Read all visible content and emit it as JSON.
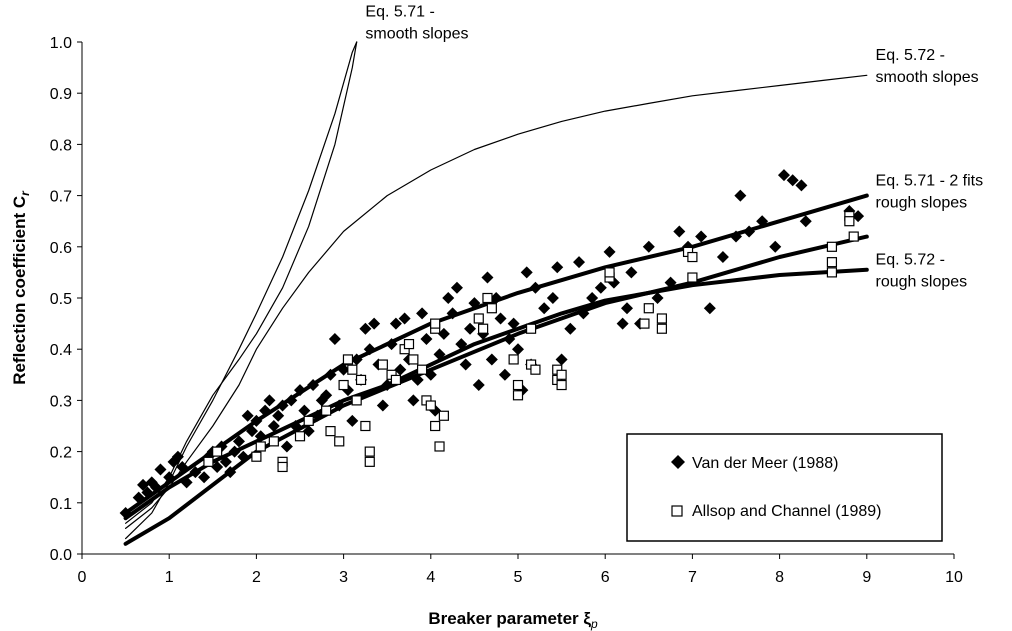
{
  "chart_data": {
    "type": "scatter",
    "xlabel": "Breaker parameter ξ",
    "xlabel_sub": "p",
    "ylabel": "Reflection coefficient C",
    "ylabel_sub": "r",
    "xlim": [
      0,
      10
    ],
    "ylim": [
      0,
      1
    ],
    "xticks": [
      "0",
      "1",
      "2",
      "3",
      "4",
      "5",
      "6",
      "7",
      "8",
      "9",
      "10"
    ],
    "yticks": [
      "0.0",
      "0.1",
      "0.2",
      "0.3",
      "0.4",
      "0.5",
      "0.6",
      "0.7",
      "0.8",
      "0.9",
      "1.0"
    ],
    "grid": false,
    "legend_position": "bottom-right",
    "legend": [
      {
        "label": "Van der Meer (1988)",
        "marker": "filled-diamond"
      },
      {
        "label": "Allsop and Channel (1989)",
        "marker": "open-square"
      }
    ],
    "annotations": [
      {
        "line1": "Eq. 5.71 -",
        "line2": "smooth slopes",
        "x": 3.25,
        "y": 1.05
      },
      {
        "line1": "Eq. 5.72 -",
        "line2": "smooth slopes",
        "x": 9.1,
        "y": 0.965
      },
      {
        "line1": "Eq. 5.71 - 2 fits",
        "line2": "rough slopes",
        "x": 9.1,
        "y": 0.72
      },
      {
        "line1": "Eq. 5.72 -",
        "line2": "rough slopes",
        "x": 9.1,
        "y": 0.565
      }
    ],
    "curves": [
      {
        "name": "Eq. 5.71 - smooth slopes",
        "weight": "thin",
        "x": [
          0.5,
          0.8,
          1.0,
          1.2,
          1.5,
          1.8,
          2.0,
          2.3,
          2.6,
          2.9,
          3.1,
          3.15
        ],
        "y": [
          0.03,
          0.08,
          0.14,
          0.21,
          0.3,
          0.4,
          0.47,
          0.58,
          0.71,
          0.86,
          0.98,
          1.0
        ]
      },
      {
        "name": "Eq. 5.71 - smooth slopes (2nd fit)",
        "weight": "thin",
        "x": [
          0.5,
          0.8,
          1.0,
          1.2,
          1.5,
          1.8,
          2.0,
          2.3,
          2.6,
          2.9,
          3.1,
          3.15
        ],
        "y": [
          0.06,
          0.1,
          0.15,
          0.22,
          0.31,
          0.38,
          0.43,
          0.52,
          0.64,
          0.8,
          0.95,
          1.0
        ]
      },
      {
        "name": "Eq. 5.72 - smooth slopes",
        "weight": "thin",
        "x": [
          0.5,
          0.8,
          1.0,
          1.2,
          1.5,
          1.8,
          2.0,
          2.3,
          2.6,
          3.0,
          3.5,
          4.0,
          4.5,
          5.0,
          5.5,
          6.0,
          6.5,
          7.0,
          7.5,
          8.0,
          8.5,
          9.0
        ],
        "y": [
          0.05,
          0.09,
          0.13,
          0.18,
          0.25,
          0.33,
          0.4,
          0.48,
          0.55,
          0.63,
          0.7,
          0.75,
          0.79,
          0.82,
          0.845,
          0.865,
          0.88,
          0.895,
          0.905,
          0.915,
          0.925,
          0.935
        ]
      },
      {
        "name": "Eq. 5.71 - rough slopes fit 1",
        "weight": "thick",
        "x": [
          0.5,
          1,
          2,
          3,
          4,
          5,
          6,
          7,
          8,
          9
        ],
        "y": [
          0.08,
          0.14,
          0.26,
          0.37,
          0.45,
          0.51,
          0.56,
          0.6,
          0.65,
          0.7
        ]
      },
      {
        "name": "Eq. 5.71 - rough slopes fit 2",
        "weight": "thick",
        "x": [
          0.5,
          1,
          2,
          3,
          4,
          5,
          6,
          7,
          8,
          9
        ],
        "y": [
          0.02,
          0.07,
          0.2,
          0.29,
          0.36,
          0.43,
          0.49,
          0.53,
          0.58,
          0.62
        ]
      },
      {
        "name": "Eq. 5.72 - rough slopes",
        "weight": "thick",
        "x": [
          0.5,
          1,
          1.5,
          2,
          2.5,
          3,
          3.5,
          4,
          4.5,
          5,
          5.5,
          6,
          6.5,
          7,
          7.5,
          8,
          8.5,
          9
        ],
        "y": [
          0.07,
          0.13,
          0.18,
          0.22,
          0.26,
          0.3,
          0.33,
          0.37,
          0.41,
          0.44,
          0.47,
          0.495,
          0.51,
          0.525,
          0.535,
          0.545,
          0.55,
          0.555
        ]
      }
    ],
    "series": [
      {
        "name": "Van der Meer (1988)",
        "marker": "filled-diamond",
        "points": [
          [
            0.5,
            0.08
          ],
          [
            0.65,
            0.11
          ],
          [
            0.7,
            0.135
          ],
          [
            0.75,
            0.12
          ],
          [
            0.8,
            0.14
          ],
          [
            0.85,
            0.13
          ],
          [
            0.9,
            0.165
          ],
          [
            1.0,
            0.15
          ],
          [
            1.05,
            0.18
          ],
          [
            1.1,
            0.19
          ],
          [
            1.15,
            0.17
          ],
          [
            1.2,
            0.14
          ],
          [
            1.3,
            0.16
          ],
          [
            1.4,
            0.15
          ],
          [
            1.45,
            0.19
          ],
          [
            1.5,
            0.2
          ],
          [
            1.55,
            0.17
          ],
          [
            1.6,
            0.21
          ],
          [
            1.65,
            0.18
          ],
          [
            1.7,
            0.16
          ],
          [
            1.75,
            0.2
          ],
          [
            1.8,
            0.22
          ],
          [
            1.85,
            0.19
          ],
          [
            1.9,
            0.27
          ],
          [
            1.95,
            0.24
          ],
          [
            2.0,
            0.26
          ],
          [
            2.05,
            0.23
          ],
          [
            2.1,
            0.28
          ],
          [
            2.15,
            0.3
          ],
          [
            2.2,
            0.25
          ],
          [
            2.25,
            0.27
          ],
          [
            2.3,
            0.29
          ],
          [
            2.35,
            0.21
          ],
          [
            2.4,
            0.3
          ],
          [
            2.45,
            0.25
          ],
          [
            2.5,
            0.32
          ],
          [
            2.55,
            0.28
          ],
          [
            2.6,
            0.24
          ],
          [
            2.65,
            0.33
          ],
          [
            2.7,
            0.27
          ],
          [
            2.75,
            0.3
          ],
          [
            2.8,
            0.31
          ],
          [
            2.85,
            0.35
          ],
          [
            2.9,
            0.42
          ],
          [
            2.95,
            0.29
          ],
          [
            3.0,
            0.36
          ],
          [
            3.05,
            0.32
          ],
          [
            3.1,
            0.26
          ],
          [
            3.15,
            0.38
          ],
          [
            3.2,
            0.34
          ],
          [
            3.25,
            0.44
          ],
          [
            3.3,
            0.4
          ],
          [
            3.35,
            0.45
          ],
          [
            3.4,
            0.37
          ],
          [
            3.45,
            0.29
          ],
          [
            3.5,
            0.33
          ],
          [
            3.55,
            0.41
          ],
          [
            3.6,
            0.45
          ],
          [
            3.65,
            0.36
          ],
          [
            3.7,
            0.46
          ],
          [
            3.75,
            0.38
          ],
          [
            3.8,
            0.3
          ],
          [
            3.85,
            0.34
          ],
          [
            3.9,
            0.47
          ],
          [
            3.95,
            0.42
          ],
          [
            4.0,
            0.35
          ],
          [
            4.05,
            0.28
          ],
          [
            4.1,
            0.39
          ],
          [
            4.15,
            0.43
          ],
          [
            4.2,
            0.5
          ],
          [
            4.25,
            0.47
          ],
          [
            4.3,
            0.52
          ],
          [
            4.35,
            0.41
          ],
          [
            4.4,
            0.37
          ],
          [
            4.45,
            0.44
          ],
          [
            4.5,
            0.49
          ],
          [
            4.55,
            0.33
          ],
          [
            4.6,
            0.43
          ],
          [
            4.65,
            0.54
          ],
          [
            4.7,
            0.38
          ],
          [
            4.75,
            0.5
          ],
          [
            4.8,
            0.46
          ],
          [
            4.85,
            0.35
          ],
          [
            4.9,
            0.42
          ],
          [
            4.95,
            0.45
          ],
          [
            5.0,
            0.4
          ],
          [
            5.05,
            0.32
          ],
          [
            5.1,
            0.55
          ],
          [
            5.15,
            0.37
          ],
          [
            5.2,
            0.52
          ],
          [
            5.3,
            0.48
          ],
          [
            5.4,
            0.5
          ],
          [
            5.45,
            0.56
          ],
          [
            5.5,
            0.38
          ],
          [
            5.6,
            0.44
          ],
          [
            5.7,
            0.57
          ],
          [
            5.75,
            0.47
          ],
          [
            5.85,
            0.5
          ],
          [
            5.95,
            0.52
          ],
          [
            6.05,
            0.59
          ],
          [
            6.1,
            0.53
          ],
          [
            6.2,
            0.45
          ],
          [
            6.25,
            0.48
          ],
          [
            6.3,
            0.55
          ],
          [
            6.4,
            0.45
          ],
          [
            6.5,
            0.6
          ],
          [
            6.6,
            0.5
          ],
          [
            6.75,
            0.53
          ],
          [
            6.85,
            0.63
          ],
          [
            6.95,
            0.6
          ],
          [
            7.1,
            0.62
          ],
          [
            7.2,
            0.48
          ],
          [
            7.35,
            0.58
          ],
          [
            7.5,
            0.62
          ],
          [
            7.55,
            0.7
          ],
          [
            7.65,
            0.63
          ],
          [
            7.8,
            0.65
          ],
          [
            7.95,
            0.6
          ],
          [
            8.05,
            0.74
          ],
          [
            8.15,
            0.73
          ],
          [
            8.25,
            0.72
          ],
          [
            8.3,
            0.65
          ],
          [
            8.8,
            0.67
          ],
          [
            8.9,
            0.66
          ]
        ]
      },
      {
        "name": "Allsop and Channel (1989)",
        "marker": "open-square",
        "points": [
          [
            1.45,
            0.18
          ],
          [
            1.55,
            0.2
          ],
          [
            2.0,
            0.19
          ],
          [
            2.05,
            0.21
          ],
          [
            2.2,
            0.22
          ],
          [
            2.3,
            0.18
          ],
          [
            2.3,
            0.17
          ],
          [
            2.5,
            0.23
          ],
          [
            2.6,
            0.26
          ],
          [
            2.8,
            0.28
          ],
          [
            2.85,
            0.24
          ],
          [
            2.95,
            0.22
          ],
          [
            3.0,
            0.33
          ],
          [
            3.05,
            0.38
          ],
          [
            3.1,
            0.36
          ],
          [
            3.15,
            0.3
          ],
          [
            3.2,
            0.34
          ],
          [
            3.25,
            0.25
          ],
          [
            3.3,
            0.2
          ],
          [
            3.3,
            0.18
          ],
          [
            3.45,
            0.37
          ],
          [
            3.55,
            0.35
          ],
          [
            3.6,
            0.34
          ],
          [
            3.7,
            0.4
          ],
          [
            3.75,
            0.41
          ],
          [
            3.8,
            0.38
          ],
          [
            3.9,
            0.36
          ],
          [
            3.95,
            0.3
          ],
          [
            4.0,
            0.29
          ],
          [
            4.05,
            0.25
          ],
          [
            4.05,
            0.44
          ],
          [
            4.05,
            0.45
          ],
          [
            4.1,
            0.21
          ],
          [
            4.15,
            0.27
          ],
          [
            4.55,
            0.46
          ],
          [
            4.6,
            0.44
          ],
          [
            4.65,
            0.5
          ],
          [
            4.7,
            0.48
          ],
          [
            4.95,
            0.38
          ],
          [
            5.0,
            0.33
          ],
          [
            5.0,
            0.31
          ],
          [
            5.15,
            0.44
          ],
          [
            5.15,
            0.37
          ],
          [
            5.2,
            0.36
          ],
          [
            5.45,
            0.36
          ],
          [
            5.45,
            0.34
          ],
          [
            5.5,
            0.35
          ],
          [
            5.5,
            0.33
          ],
          [
            6.05,
            0.54
          ],
          [
            6.05,
            0.55
          ],
          [
            6.45,
            0.45
          ],
          [
            6.5,
            0.48
          ],
          [
            6.65,
            0.46
          ],
          [
            6.65,
            0.44
          ],
          [
            6.95,
            0.59
          ],
          [
            7.0,
            0.58
          ],
          [
            7.0,
            0.54
          ],
          [
            8.6,
            0.55
          ],
          [
            8.6,
            0.57
          ],
          [
            8.6,
            0.6
          ],
          [
            8.8,
            0.66
          ],
          [
            8.8,
            0.65
          ],
          [
            8.85,
            0.62
          ]
        ]
      }
    ]
  }
}
